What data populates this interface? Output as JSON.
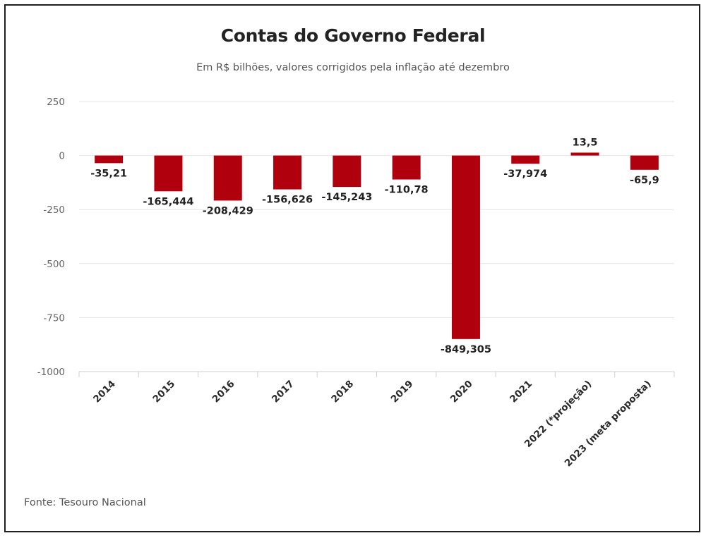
{
  "header": {
    "title": "Contas do Governo Federal",
    "subtitle": "Em R$ bilhões, valores corrigidos pela inflação até dezembro"
  },
  "footer": {
    "source": "Fonte: Tesouro Nacional"
  },
  "chart_data": {
    "type": "bar",
    "title": "Contas do Governo Federal",
    "subtitle": "Em R$ bilhões, valores corrigidos pela inflação até dezembro",
    "categories": [
      "2014",
      "2015",
      "2016",
      "2017",
      "2018",
      "2019",
      "2020",
      "2021",
      "2022 (*projeção)",
      "2023 (meta proposta)"
    ],
    "values": [
      -35.21,
      -165.444,
      -208.429,
      -156.626,
      -145.243,
      -110.78,
      -849.305,
      -37.974,
      13.5,
      -65.9
    ],
    "data_labels": [
      "-35,21",
      "-165,444",
      "-208,429",
      "-156,626",
      "-145,243",
      "-110,78",
      "-849,305",
      "-37,974",
      "13,5",
      "-65,9"
    ],
    "yticks": [
      250,
      0,
      -250,
      -500,
      -750,
      -1000
    ],
    "ylim": [
      -1000,
      250
    ],
    "grid": true,
    "legend": "none",
    "bar_color": "#b0000d"
  }
}
